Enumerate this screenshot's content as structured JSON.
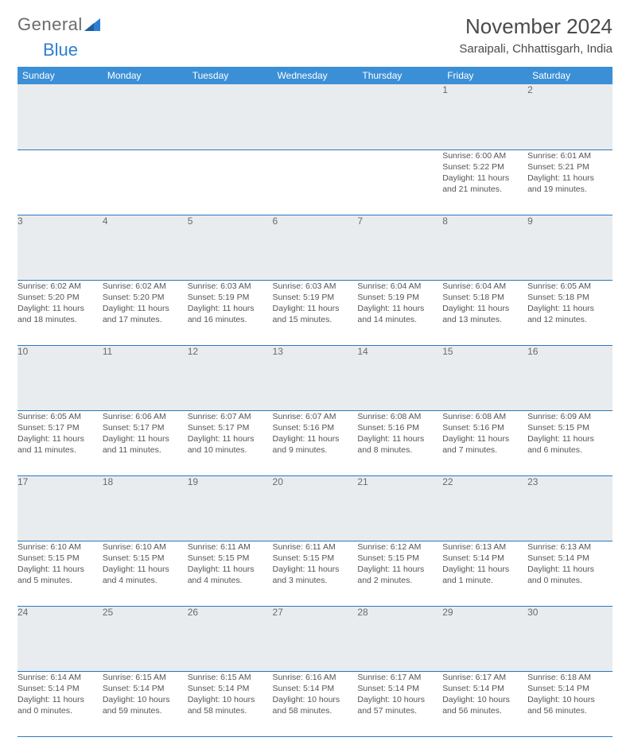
{
  "brand": {
    "word1": "General",
    "word2": "Blue"
  },
  "title": "November 2024",
  "location": "Saraipali, Chhattisgarh, India",
  "colors": {
    "header_bg": "#3b8fd6",
    "header_text": "#ffffff",
    "daynum_bg": "#e9ecef",
    "rule": "#2a78c2",
    "body_text": "#555555",
    "title_text": "#4a4a4a",
    "logo_gray": "#6b6b6b",
    "logo_blue": "#2a7fd4"
  },
  "weekdays": [
    "Sunday",
    "Monday",
    "Tuesday",
    "Wednesday",
    "Thursday",
    "Friday",
    "Saturday"
  ],
  "weeks": [
    [
      null,
      null,
      null,
      null,
      null,
      {
        "n": "1",
        "sr": "Sunrise: 6:00 AM",
        "ss": "Sunset: 5:22 PM",
        "dl1": "Daylight: 11 hours",
        "dl2": "and 21 minutes."
      },
      {
        "n": "2",
        "sr": "Sunrise: 6:01 AM",
        "ss": "Sunset: 5:21 PM",
        "dl1": "Daylight: 11 hours",
        "dl2": "and 19 minutes."
      }
    ],
    [
      {
        "n": "3",
        "sr": "Sunrise: 6:02 AM",
        "ss": "Sunset: 5:20 PM",
        "dl1": "Daylight: 11 hours",
        "dl2": "and 18 minutes."
      },
      {
        "n": "4",
        "sr": "Sunrise: 6:02 AM",
        "ss": "Sunset: 5:20 PM",
        "dl1": "Daylight: 11 hours",
        "dl2": "and 17 minutes."
      },
      {
        "n": "5",
        "sr": "Sunrise: 6:03 AM",
        "ss": "Sunset: 5:19 PM",
        "dl1": "Daylight: 11 hours",
        "dl2": "and 16 minutes."
      },
      {
        "n": "6",
        "sr": "Sunrise: 6:03 AM",
        "ss": "Sunset: 5:19 PM",
        "dl1": "Daylight: 11 hours",
        "dl2": "and 15 minutes."
      },
      {
        "n": "7",
        "sr": "Sunrise: 6:04 AM",
        "ss": "Sunset: 5:19 PM",
        "dl1": "Daylight: 11 hours",
        "dl2": "and 14 minutes."
      },
      {
        "n": "8",
        "sr": "Sunrise: 6:04 AM",
        "ss": "Sunset: 5:18 PM",
        "dl1": "Daylight: 11 hours",
        "dl2": "and 13 minutes."
      },
      {
        "n": "9",
        "sr": "Sunrise: 6:05 AM",
        "ss": "Sunset: 5:18 PM",
        "dl1": "Daylight: 11 hours",
        "dl2": "and 12 minutes."
      }
    ],
    [
      {
        "n": "10",
        "sr": "Sunrise: 6:05 AM",
        "ss": "Sunset: 5:17 PM",
        "dl1": "Daylight: 11 hours",
        "dl2": "and 11 minutes."
      },
      {
        "n": "11",
        "sr": "Sunrise: 6:06 AM",
        "ss": "Sunset: 5:17 PM",
        "dl1": "Daylight: 11 hours",
        "dl2": "and 11 minutes."
      },
      {
        "n": "12",
        "sr": "Sunrise: 6:07 AM",
        "ss": "Sunset: 5:17 PM",
        "dl1": "Daylight: 11 hours",
        "dl2": "and 10 minutes."
      },
      {
        "n": "13",
        "sr": "Sunrise: 6:07 AM",
        "ss": "Sunset: 5:16 PM",
        "dl1": "Daylight: 11 hours",
        "dl2": "and 9 minutes."
      },
      {
        "n": "14",
        "sr": "Sunrise: 6:08 AM",
        "ss": "Sunset: 5:16 PM",
        "dl1": "Daylight: 11 hours",
        "dl2": "and 8 minutes."
      },
      {
        "n": "15",
        "sr": "Sunrise: 6:08 AM",
        "ss": "Sunset: 5:16 PM",
        "dl1": "Daylight: 11 hours",
        "dl2": "and 7 minutes."
      },
      {
        "n": "16",
        "sr": "Sunrise: 6:09 AM",
        "ss": "Sunset: 5:15 PM",
        "dl1": "Daylight: 11 hours",
        "dl2": "and 6 minutes."
      }
    ],
    [
      {
        "n": "17",
        "sr": "Sunrise: 6:10 AM",
        "ss": "Sunset: 5:15 PM",
        "dl1": "Daylight: 11 hours",
        "dl2": "and 5 minutes."
      },
      {
        "n": "18",
        "sr": "Sunrise: 6:10 AM",
        "ss": "Sunset: 5:15 PM",
        "dl1": "Daylight: 11 hours",
        "dl2": "and 4 minutes."
      },
      {
        "n": "19",
        "sr": "Sunrise: 6:11 AM",
        "ss": "Sunset: 5:15 PM",
        "dl1": "Daylight: 11 hours",
        "dl2": "and 4 minutes."
      },
      {
        "n": "20",
        "sr": "Sunrise: 6:11 AM",
        "ss": "Sunset: 5:15 PM",
        "dl1": "Daylight: 11 hours",
        "dl2": "and 3 minutes."
      },
      {
        "n": "21",
        "sr": "Sunrise: 6:12 AM",
        "ss": "Sunset: 5:15 PM",
        "dl1": "Daylight: 11 hours",
        "dl2": "and 2 minutes."
      },
      {
        "n": "22",
        "sr": "Sunrise: 6:13 AM",
        "ss": "Sunset: 5:14 PM",
        "dl1": "Daylight: 11 hours",
        "dl2": "and 1 minute."
      },
      {
        "n": "23",
        "sr": "Sunrise: 6:13 AM",
        "ss": "Sunset: 5:14 PM",
        "dl1": "Daylight: 11 hours",
        "dl2": "and 0 minutes."
      }
    ],
    [
      {
        "n": "24",
        "sr": "Sunrise: 6:14 AM",
        "ss": "Sunset: 5:14 PM",
        "dl1": "Daylight: 11 hours",
        "dl2": "and 0 minutes."
      },
      {
        "n": "25",
        "sr": "Sunrise: 6:15 AM",
        "ss": "Sunset: 5:14 PM",
        "dl1": "Daylight: 10 hours",
        "dl2": "and 59 minutes."
      },
      {
        "n": "26",
        "sr": "Sunrise: 6:15 AM",
        "ss": "Sunset: 5:14 PM",
        "dl1": "Daylight: 10 hours",
        "dl2": "and 58 minutes."
      },
      {
        "n": "27",
        "sr": "Sunrise: 6:16 AM",
        "ss": "Sunset: 5:14 PM",
        "dl1": "Daylight: 10 hours",
        "dl2": "and 58 minutes."
      },
      {
        "n": "28",
        "sr": "Sunrise: 6:17 AM",
        "ss": "Sunset: 5:14 PM",
        "dl1": "Daylight: 10 hours",
        "dl2": "and 57 minutes."
      },
      {
        "n": "29",
        "sr": "Sunrise: 6:17 AM",
        "ss": "Sunset: 5:14 PM",
        "dl1": "Daylight: 10 hours",
        "dl2": "and 56 minutes."
      },
      {
        "n": "30",
        "sr": "Sunrise: 6:18 AM",
        "ss": "Sunset: 5:14 PM",
        "dl1": "Daylight: 10 hours",
        "dl2": "and 56 minutes."
      }
    ]
  ]
}
